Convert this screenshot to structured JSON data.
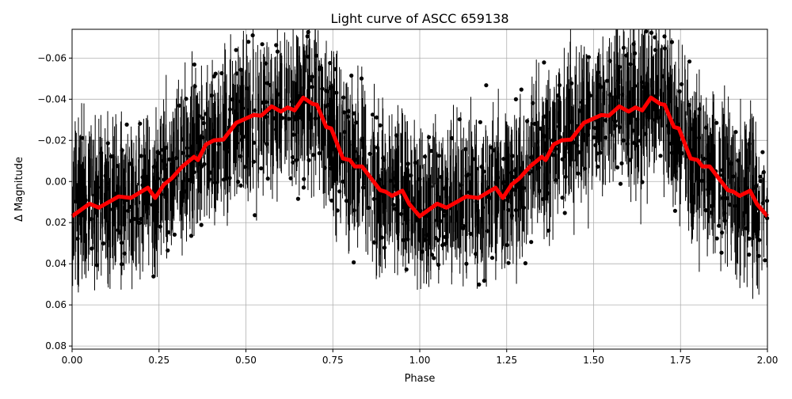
{
  "chart_data": {
    "type": "scatter",
    "title": "Light curve of ASCC 659138",
    "xlabel": "Phase",
    "ylabel": "Δ Magnitude",
    "xlim": [
      0.0,
      2.0
    ],
    "ylim": [
      0.0815,
      -0.074
    ],
    "y_inverted": true,
    "grid": true,
    "x_ticks": [
      "0.00",
      "0.25",
      "0.50",
      "0.75",
      "1.00",
      "1.25",
      "1.50",
      "1.75",
      "2.00"
    ],
    "y_ticks": [
      "−0.06",
      "−0.04",
      "−0.02",
      "0.00",
      "0.02",
      "0.04",
      "0.06",
      "0.08"
    ],
    "x_tick_values": [
      0,
      0.25,
      0.5,
      0.75,
      1.0,
      1.25,
      1.5,
      1.75,
      2.0
    ],
    "y_tick_values": [
      -0.06,
      -0.04,
      -0.02,
      0,
      0.02,
      0.04,
      0.06,
      0.08
    ],
    "observations": {
      "color": "#000000",
      "marker": "circle",
      "error_bars": true,
      "scatter_range": 0.06
    },
    "binned_curve": {
      "color": "#ff0000",
      "period_repeat": 1.0,
      "phase": [
        0.0,
        0.05,
        0.077,
        0.134,
        0.169,
        0.218,
        0.239,
        0.264,
        0.286,
        0.317,
        0.351,
        0.362,
        0.385,
        0.408,
        0.435,
        0.472,
        0.522,
        0.544,
        0.574,
        0.601,
        0.62,
        0.64,
        0.665,
        0.692,
        0.704,
        0.731,
        0.745,
        0.779,
        0.799,
        0.813,
        0.834,
        0.886,
        0.902,
        0.92,
        0.95,
        0.97,
        1.0
      ],
      "magnitude": [
        0.0169,
        0.0108,
        0.0127,
        0.0073,
        0.008,
        0.003,
        0.008,
        0.0015,
        -0.0015,
        -0.0073,
        -0.012,
        -0.0104,
        -0.018,
        -0.02,
        -0.0204,
        -0.0285,
        -0.0323,
        -0.032,
        -0.0365,
        -0.034,
        -0.036,
        -0.0346,
        -0.0408,
        -0.0377,
        -0.0373,
        -0.0265,
        -0.0258,
        -0.0112,
        -0.0104,
        -0.0073,
        -0.0073,
        0.0042,
        0.005,
        0.007,
        0.0045,
        0.011,
        0.0169
      ]
    }
  }
}
